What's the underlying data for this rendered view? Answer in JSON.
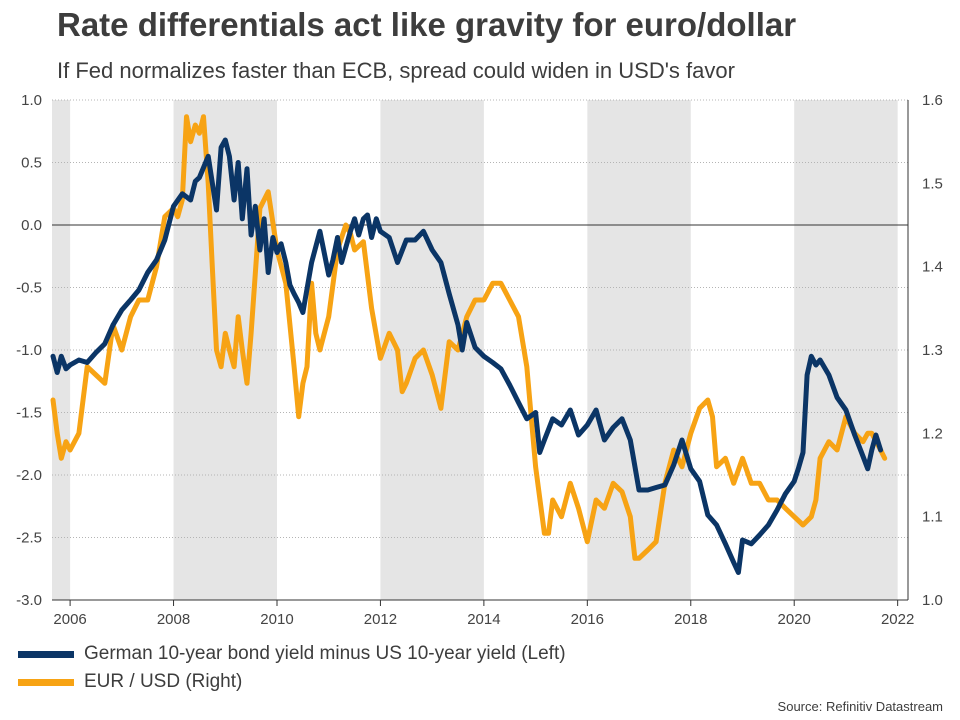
{
  "title": "Rate differentials act like gravity for euro/dollar",
  "subtitle": "If Fed normalizes faster than ECB, spread could widen in USD's favor",
  "source": "Source: Refinitiv Datastream",
  "colors": {
    "spread": "#0b3566",
    "eurusd": "#f7a314",
    "shade": "#e5e5e5",
    "grid": "#b4b4b4"
  },
  "chart_data": {
    "type": "line",
    "title": "Rate differentials act like gravity for euro/dollar",
    "subtitle": "If Fed normalizes faster than ECB, spread could widen in USD's favor",
    "xlabel": "",
    "x_ticks": [
      "2006",
      "2008",
      "2010",
      "2012",
      "2014",
      "2016",
      "2018",
      "2020",
      "2022"
    ],
    "x_tick_values": [
      2006,
      2008,
      2010,
      2012,
      2014,
      2016,
      2018,
      2020,
      2022
    ],
    "xlim": [
      2005.65,
      2022.2
    ],
    "left_axis": {
      "ylim": [
        -3.0,
        1.0
      ],
      "ticks": [
        "1.0",
        "0.5",
        "0.0",
        "-0.5",
        "-1.0",
        "-1.5",
        "-2.0",
        "-2.5",
        "-3.0"
      ],
      "tick_values": [
        1.0,
        0.5,
        0.0,
        -0.5,
        -1.0,
        -1.5,
        -2.0,
        -2.5,
        -3.0
      ]
    },
    "right_axis": {
      "ylim": [
        1.0,
        1.6
      ],
      "ticks": [
        "1.6",
        "1.5",
        "1.4",
        "1.3",
        "1.2",
        "1.1",
        "1.0"
      ],
      "tick_values": [
        1.6,
        1.5,
        1.4,
        1.3,
        1.2,
        1.1,
        1.0
      ]
    },
    "shaded_periods": [
      [
        2005.65,
        2006.0
      ],
      [
        2008.0,
        2010.0
      ],
      [
        2012.0,
        2014.0
      ],
      [
        2016.0,
        2018.0
      ],
      [
        2020.0,
        2022.0
      ]
    ],
    "zero_line": 0,
    "legend_position": "bottom-left",
    "series": [
      {
        "name": "German 10-year bond yield minus US 10-year yield (Left)",
        "axis": "left",
        "x": [
          2005.67,
          2005.75,
          2005.83,
          2005.92,
          2006.0,
          2006.17,
          2006.33,
          2006.5,
          2006.67,
          2006.83,
          2007.0,
          2007.17,
          2007.33,
          2007.5,
          2007.67,
          2007.83,
          2008.0,
          2008.17,
          2008.33,
          2008.42,
          2008.5,
          2008.67,
          2008.83,
          2008.92,
          2009.0,
          2009.08,
          2009.17,
          2009.25,
          2009.33,
          2009.42,
          2009.5,
          2009.58,
          2009.67,
          2009.75,
          2009.83,
          2009.92,
          2010.0,
          2010.08,
          2010.17,
          2010.25,
          2010.33,
          2010.42,
          2010.5,
          2010.67,
          2010.83,
          2011.0,
          2011.08,
          2011.17,
          2011.25,
          2011.33,
          2011.42,
          2011.5,
          2011.58,
          2011.67,
          2011.75,
          2011.83,
          2011.92,
          2012.0,
          2012.17,
          2012.33,
          2012.5,
          2012.67,
          2012.83,
          2013.0,
          2013.17,
          2013.33,
          2013.5,
          2013.58,
          2013.67,
          2013.83,
          2014.0,
          2014.17,
          2014.33,
          2014.5,
          2014.67,
          2014.83,
          2015.0,
          2015.08,
          2015.17,
          2015.33,
          2015.5,
          2015.67,
          2015.83,
          2016.0,
          2016.17,
          2016.33,
          2016.5,
          2016.67,
          2016.83,
          2017.0,
          2017.17,
          2017.33,
          2017.5,
          2017.67,
          2017.83,
          2018.0,
          2018.17,
          2018.33,
          2018.5,
          2018.67,
          2018.83,
          2018.92,
          2019.0,
          2019.17,
          2019.33,
          2019.5,
          2019.67,
          2019.83,
          2020.0,
          2020.08,
          2020.17,
          2020.25,
          2020.33,
          2020.42,
          2020.5,
          2020.67,
          2020.83,
          2021.0,
          2021.17,
          2021.33,
          2021.42,
          2021.5,
          2021.58,
          2021.67
        ],
        "values": [
          -1.05,
          -1.18,
          -1.05,
          -1.15,
          -1.12,
          -1.08,
          -1.1,
          -1.02,
          -0.95,
          -0.8,
          -0.68,
          -0.6,
          -0.52,
          -0.38,
          -0.28,
          -0.12,
          0.15,
          0.25,
          0.2,
          0.35,
          0.38,
          0.55,
          0.12,
          0.62,
          0.68,
          0.55,
          0.2,
          0.5,
          0.05,
          0.45,
          -0.08,
          0.15,
          -0.2,
          0.05,
          -0.38,
          -0.1,
          -0.22,
          -0.15,
          -0.3,
          -0.48,
          -0.55,
          -0.62,
          -0.7,
          -0.3,
          -0.05,
          -0.4,
          -0.28,
          -0.1,
          -0.3,
          -0.18,
          -0.05,
          0.05,
          -0.08,
          0.05,
          0.08,
          -0.1,
          0.05,
          -0.05,
          -0.1,
          -0.3,
          -0.12,
          -0.12,
          -0.05,
          -0.2,
          -0.3,
          -0.55,
          -0.8,
          -1.0,
          -0.78,
          -0.98,
          -1.05,
          -1.1,
          -1.15,
          -1.28,
          -1.42,
          -1.55,
          -1.5,
          -1.82,
          -1.72,
          -1.55,
          -1.6,
          -1.48,
          -1.68,
          -1.6,
          -1.48,
          -1.72,
          -1.62,
          -1.55,
          -1.72,
          -2.12,
          -2.12,
          -2.1,
          -2.08,
          -1.92,
          -1.72,
          -1.95,
          -2.05,
          -2.32,
          -2.4,
          -2.55,
          -2.7,
          -2.78,
          -2.52,
          -2.55,
          -2.48,
          -2.4,
          -2.28,
          -2.15,
          -2.05,
          -1.95,
          -1.82,
          -1.2,
          -1.05,
          -1.12,
          -1.08,
          -1.2,
          -1.38,
          -1.48,
          -1.68,
          -1.85,
          -1.95,
          -1.8,
          -1.68,
          -1.8
        ]
      },
      {
        "name": "EUR / USD (Right)",
        "axis": "right",
        "x": [
          2005.67,
          2005.75,
          2005.83,
          2005.92,
          2006.0,
          2006.17,
          2006.33,
          2006.5,
          2006.67,
          2006.83,
          2007.0,
          2007.17,
          2007.33,
          2007.5,
          2007.67,
          2007.83,
          2008.0,
          2008.08,
          2008.17,
          2008.25,
          2008.33,
          2008.42,
          2008.5,
          2008.58,
          2008.67,
          2008.75,
          2008.83,
          2008.92,
          2009.0,
          2009.08,
          2009.17,
          2009.25,
          2009.33,
          2009.42,
          2009.5,
          2009.67,
          2009.83,
          2010.0,
          2010.17,
          2010.33,
          2010.42,
          2010.5,
          2010.58,
          2010.67,
          2010.75,
          2010.83,
          2011.0,
          2011.17,
          2011.33,
          2011.42,
          2011.5,
          2011.67,
          2011.83,
          2012.0,
          2012.17,
          2012.33,
          2012.42,
          2012.5,
          2012.67,
          2012.83,
          2013.0,
          2013.17,
          2013.33,
          2013.5,
          2013.67,
          2013.83,
          2014.0,
          2014.17,
          2014.33,
          2014.5,
          2014.67,
          2014.83,
          2015.0,
          2015.17,
          2015.25,
          2015.33,
          2015.5,
          2015.67,
          2015.83,
          2016.0,
          2016.17,
          2016.33,
          2016.5,
          2016.67,
          2016.83,
          2016.92,
          2017.0,
          2017.17,
          2017.33,
          2017.5,
          2017.67,
          2017.83,
          2018.0,
          2018.17,
          2018.33,
          2018.42,
          2018.5,
          2018.67,
          2018.83,
          2019.0,
          2019.17,
          2019.33,
          2019.5,
          2019.67,
          2019.83,
          2020.0,
          2020.17,
          2020.33,
          2020.42,
          2020.5,
          2020.67,
          2020.83,
          2021.0,
          2021.17,
          2021.33,
          2021.42,
          2021.5,
          2021.67,
          2021.75
        ],
        "values": [
          1.24,
          1.2,
          1.17,
          1.19,
          1.18,
          1.2,
          1.28,
          1.27,
          1.26,
          1.33,
          1.3,
          1.34,
          1.36,
          1.36,
          1.4,
          1.46,
          1.47,
          1.46,
          1.48,
          1.58,
          1.55,
          1.57,
          1.56,
          1.58,
          1.5,
          1.4,
          1.3,
          1.28,
          1.32,
          1.3,
          1.28,
          1.34,
          1.3,
          1.26,
          1.32,
          1.47,
          1.49,
          1.42,
          1.38,
          1.28,
          1.22,
          1.26,
          1.28,
          1.38,
          1.32,
          1.3,
          1.34,
          1.42,
          1.45,
          1.44,
          1.42,
          1.43,
          1.35,
          1.29,
          1.32,
          1.3,
          1.25,
          1.26,
          1.29,
          1.3,
          1.27,
          1.23,
          1.31,
          1.3,
          1.34,
          1.36,
          1.36,
          1.38,
          1.38,
          1.36,
          1.34,
          1.28,
          1.16,
          1.08,
          1.08,
          1.12,
          1.1,
          1.14,
          1.11,
          1.07,
          1.12,
          1.11,
          1.14,
          1.13,
          1.1,
          1.05,
          1.05,
          1.06,
          1.07,
          1.14,
          1.18,
          1.16,
          1.2,
          1.23,
          1.24,
          1.22,
          1.16,
          1.17,
          1.14,
          1.17,
          1.14,
          1.14,
          1.12,
          1.12,
          1.11,
          1.1,
          1.09,
          1.1,
          1.12,
          1.17,
          1.19,
          1.18,
          1.22,
          1.2,
          1.19,
          1.2,
          1.2,
          1.18,
          1.17
        ]
      }
    ],
    "legend": [
      "German 10-year bond yield minus US 10-year yield (Left)",
      "EUR / USD (Right)"
    ]
  }
}
